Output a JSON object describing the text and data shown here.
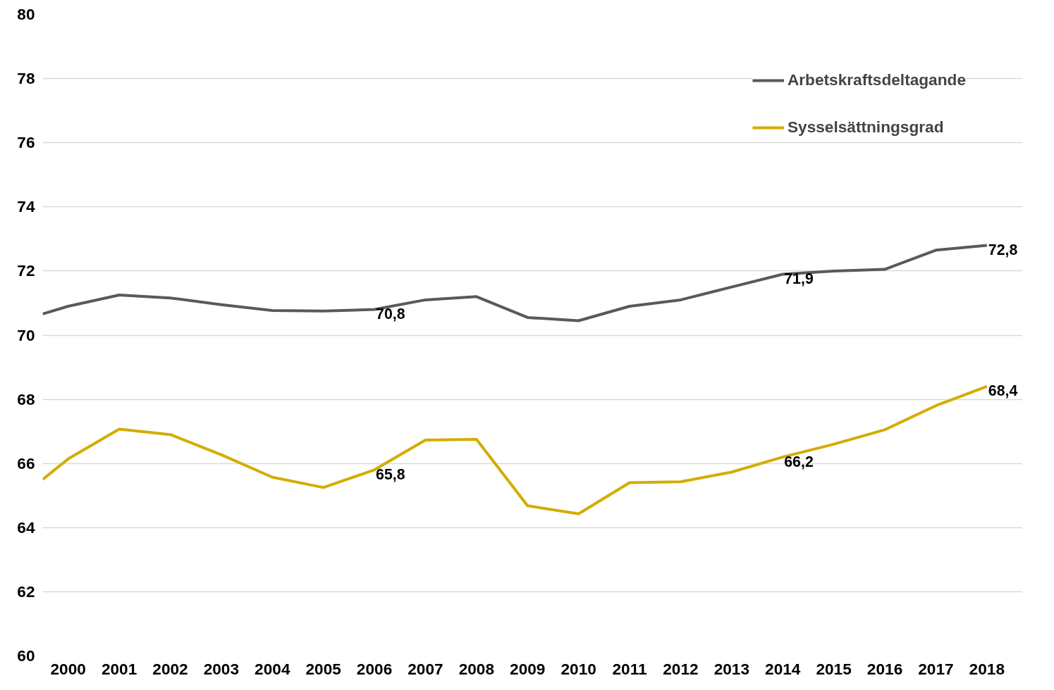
{
  "chart_data": {
    "type": "line",
    "x": [
      1999.5,
      2000,
      2001,
      2002,
      2003,
      2004,
      2005,
      2006,
      2007,
      2008,
      2009,
      2010,
      2011,
      2012,
      2013,
      2014,
      2015,
      2016,
      2017,
      2018
    ],
    "xlim": [
      1999.5,
      2018.7
    ],
    "xticks": [
      2000,
      2001,
      2002,
      2003,
      2004,
      2005,
      2006,
      2007,
      2008,
      2009,
      2010,
      2011,
      2012,
      2013,
      2014,
      2015,
      2016,
      2017,
      2018
    ],
    "ylim": [
      60,
      80
    ],
    "yticks": [
      60,
      62,
      64,
      66,
      68,
      70,
      72,
      74,
      76,
      78,
      80
    ],
    "grid": "y",
    "legend": "top right",
    "marker": "none",
    "line_style": "solid",
    "series": [
      {
        "name": "Arbetskraftsdeltagande",
        "color": "#595959",
        "values": [
          70.66,
          70.9,
          71.25,
          71.16,
          70.95,
          70.77,
          70.75,
          70.8,
          71.1,
          71.2,
          70.55,
          70.45,
          70.9,
          71.1,
          71.5,
          71.9,
          72.0,
          72.05,
          72.65,
          72.8
        ],
        "value_labels": [
          null,
          null,
          null,
          null,
          null,
          null,
          null,
          "70,8",
          null,
          null,
          null,
          null,
          null,
          null,
          null,
          "71,9",
          null,
          null,
          null,
          "72,8"
        ]
      },
      {
        "name": "Sysselsättningsgrad",
        "color": "#d4ac00",
        "values": [
          65.5,
          66.14,
          67.07,
          66.9,
          66.27,
          65.57,
          65.25,
          65.8,
          66.73,
          66.75,
          64.68,
          64.43,
          65.4,
          65.43,
          65.73,
          66.2,
          66.6,
          67.05,
          67.8,
          68.4
        ],
        "value_labels": [
          null,
          null,
          null,
          null,
          null,
          null,
          null,
          "65,8",
          null,
          null,
          null,
          null,
          null,
          null,
          null,
          "66,2",
          null,
          null,
          null,
          "68,4"
        ]
      }
    ]
  }
}
